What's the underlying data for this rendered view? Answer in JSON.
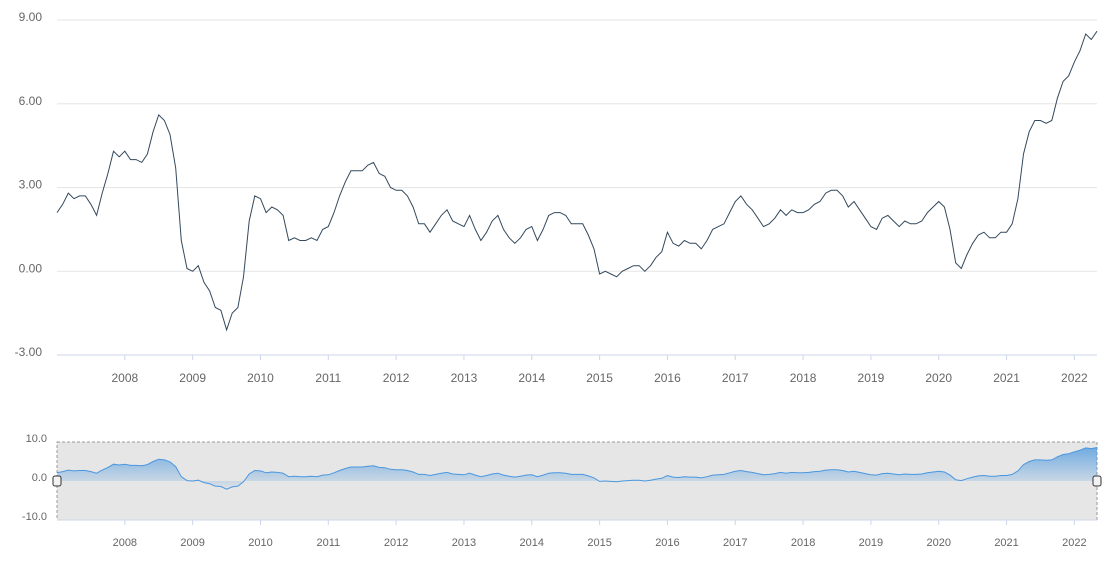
{
  "chart_data": {
    "type": "line",
    "x": [
      "2007-01",
      "2007-02",
      "2007-03",
      "2007-04",
      "2007-05",
      "2007-06",
      "2007-07",
      "2007-08",
      "2007-09",
      "2007-10",
      "2007-11",
      "2007-12",
      "2008-01",
      "2008-02",
      "2008-03",
      "2008-04",
      "2008-05",
      "2008-06",
      "2008-07",
      "2008-08",
      "2008-09",
      "2008-10",
      "2008-11",
      "2008-12",
      "2009-01",
      "2009-02",
      "2009-03",
      "2009-04",
      "2009-05",
      "2009-06",
      "2009-07",
      "2009-08",
      "2009-09",
      "2009-10",
      "2009-11",
      "2009-12",
      "2010-01",
      "2010-02",
      "2010-03",
      "2010-04",
      "2010-05",
      "2010-06",
      "2010-07",
      "2010-08",
      "2010-09",
      "2010-10",
      "2010-11",
      "2010-12",
      "2011-01",
      "2011-02",
      "2011-03",
      "2011-04",
      "2011-05",
      "2011-06",
      "2011-07",
      "2011-08",
      "2011-09",
      "2011-10",
      "2011-11",
      "2011-12",
      "2012-01",
      "2012-02",
      "2012-03",
      "2012-04",
      "2012-05",
      "2012-06",
      "2012-07",
      "2012-08",
      "2012-09",
      "2012-10",
      "2012-11",
      "2012-12",
      "2013-01",
      "2013-02",
      "2013-03",
      "2013-04",
      "2013-05",
      "2013-06",
      "2013-07",
      "2013-08",
      "2013-09",
      "2013-10",
      "2013-11",
      "2013-12",
      "2014-01",
      "2014-02",
      "2014-03",
      "2014-04",
      "2014-05",
      "2014-06",
      "2014-07",
      "2014-08",
      "2014-09",
      "2014-10",
      "2014-11",
      "2014-12",
      "2015-01",
      "2015-02",
      "2015-03",
      "2015-04",
      "2015-05",
      "2015-06",
      "2015-07",
      "2015-08",
      "2015-09",
      "2015-10",
      "2015-11",
      "2015-12",
      "2016-01",
      "2016-02",
      "2016-03",
      "2016-04",
      "2016-05",
      "2016-06",
      "2016-07",
      "2016-08",
      "2016-09",
      "2016-10",
      "2016-11",
      "2016-12",
      "2017-01",
      "2017-02",
      "2017-03",
      "2017-04",
      "2017-05",
      "2017-06",
      "2017-07",
      "2017-08",
      "2017-09",
      "2017-10",
      "2017-11",
      "2017-12",
      "2018-01",
      "2018-02",
      "2018-03",
      "2018-04",
      "2018-05",
      "2018-06",
      "2018-07",
      "2018-08",
      "2018-09",
      "2018-10",
      "2018-11",
      "2018-12",
      "2019-01",
      "2019-02",
      "2019-03",
      "2019-04",
      "2019-05",
      "2019-06",
      "2019-07",
      "2019-08",
      "2019-09",
      "2019-10",
      "2019-11",
      "2019-12",
      "2020-01",
      "2020-02",
      "2020-03",
      "2020-04",
      "2020-05",
      "2020-06",
      "2020-07",
      "2020-08",
      "2020-09",
      "2020-10",
      "2020-11",
      "2020-12",
      "2021-01",
      "2021-02",
      "2021-03",
      "2021-04",
      "2021-05",
      "2021-06",
      "2021-07",
      "2021-08",
      "2021-09",
      "2021-10",
      "2021-11",
      "2021-12",
      "2022-01",
      "2022-02",
      "2022-03",
      "2022-04",
      "2022-05"
    ],
    "values": [
      2.1,
      2.4,
      2.8,
      2.6,
      2.7,
      2.7,
      2.4,
      2.0,
      2.8,
      3.5,
      4.3,
      4.1,
      4.3,
      4.0,
      4.0,
      3.9,
      4.2,
      5.0,
      5.6,
      5.4,
      4.9,
      3.7,
      1.1,
      0.1,
      0.0,
      0.2,
      -0.4,
      -0.7,
      -1.3,
      -1.4,
      -2.1,
      -1.5,
      -1.3,
      -0.2,
      1.8,
      2.7,
      2.6,
      2.1,
      2.3,
      2.2,
      2.0,
      1.1,
      1.2,
      1.1,
      1.1,
      1.2,
      1.1,
      1.5,
      1.6,
      2.1,
      2.7,
      3.2,
      3.6,
      3.6,
      3.6,
      3.8,
      3.9,
      3.5,
      3.4,
      3.0,
      2.9,
      2.9,
      2.7,
      2.3,
      1.7,
      1.7,
      1.4,
      1.7,
      2.0,
      2.2,
      1.8,
      1.7,
      1.6,
      2.0,
      1.5,
      1.1,
      1.4,
      1.8,
      2.0,
      1.5,
      1.2,
      1.0,
      1.2,
      1.5,
      1.6,
      1.1,
      1.5,
      2.0,
      2.1,
      2.1,
      2.0,
      1.7,
      1.7,
      1.7,
      1.3,
      0.8,
      -0.1,
      0.0,
      -0.1,
      -0.2,
      0.0,
      0.1,
      0.2,
      0.2,
      0.0,
      0.2,
      0.5,
      0.7,
      1.4,
      1.0,
      0.9,
      1.1,
      1.0,
      1.0,
      0.8,
      1.1,
      1.5,
      1.6,
      1.7,
      2.1,
      2.5,
      2.7,
      2.4,
      2.2,
      1.9,
      1.6,
      1.7,
      1.9,
      2.2,
      2.0,
      2.2,
      2.1,
      2.1,
      2.2,
      2.4,
      2.5,
      2.8,
      2.9,
      2.9,
      2.7,
      2.3,
      2.5,
      2.2,
      1.9,
      1.6,
      1.5,
      1.9,
      2.0,
      1.8,
      1.6,
      1.8,
      1.7,
      1.7,
      1.8,
      2.1,
      2.3,
      2.5,
      2.3,
      1.5,
      0.3,
      0.1,
      0.6,
      1.0,
      1.3,
      1.4,
      1.2,
      1.2,
      1.4,
      1.4,
      1.7,
      2.6,
      4.2,
      5.0,
      5.4,
      5.4,
      5.3,
      5.4,
      6.2,
      6.8,
      7.0,
      7.5,
      7.9,
      8.5,
      8.3,
      8.6
    ],
    "color": "#34495e",
    "xlim": [
      "2007-01",
      "2022-05"
    ],
    "xticks": [
      "2008",
      "2009",
      "2010",
      "2011",
      "2012",
      "2013",
      "2014",
      "2015",
      "2016",
      "2017",
      "2018",
      "2019",
      "2020",
      "2021",
      "2022"
    ],
    "ylim": [
      -3,
      9
    ],
    "yticks": [
      {
        "value": 9,
        "label": "9.00"
      },
      {
        "value": 6,
        "label": "6.00"
      },
      {
        "value": 3,
        "label": "3.00"
      },
      {
        "value": 0,
        "label": "0.00"
      },
      {
        "value": -3,
        "label": "-3.00"
      }
    ],
    "grid": true,
    "navigator": {
      "type": "area",
      "color": "#4a97df",
      "ylim": [
        -10,
        10
      ],
      "yticks": [
        {
          "value": 10,
          "label": "10.0"
        },
        {
          "value": 0,
          "label": "0.0"
        },
        {
          "value": -10,
          "label": "-10.0"
        }
      ]
    }
  }
}
